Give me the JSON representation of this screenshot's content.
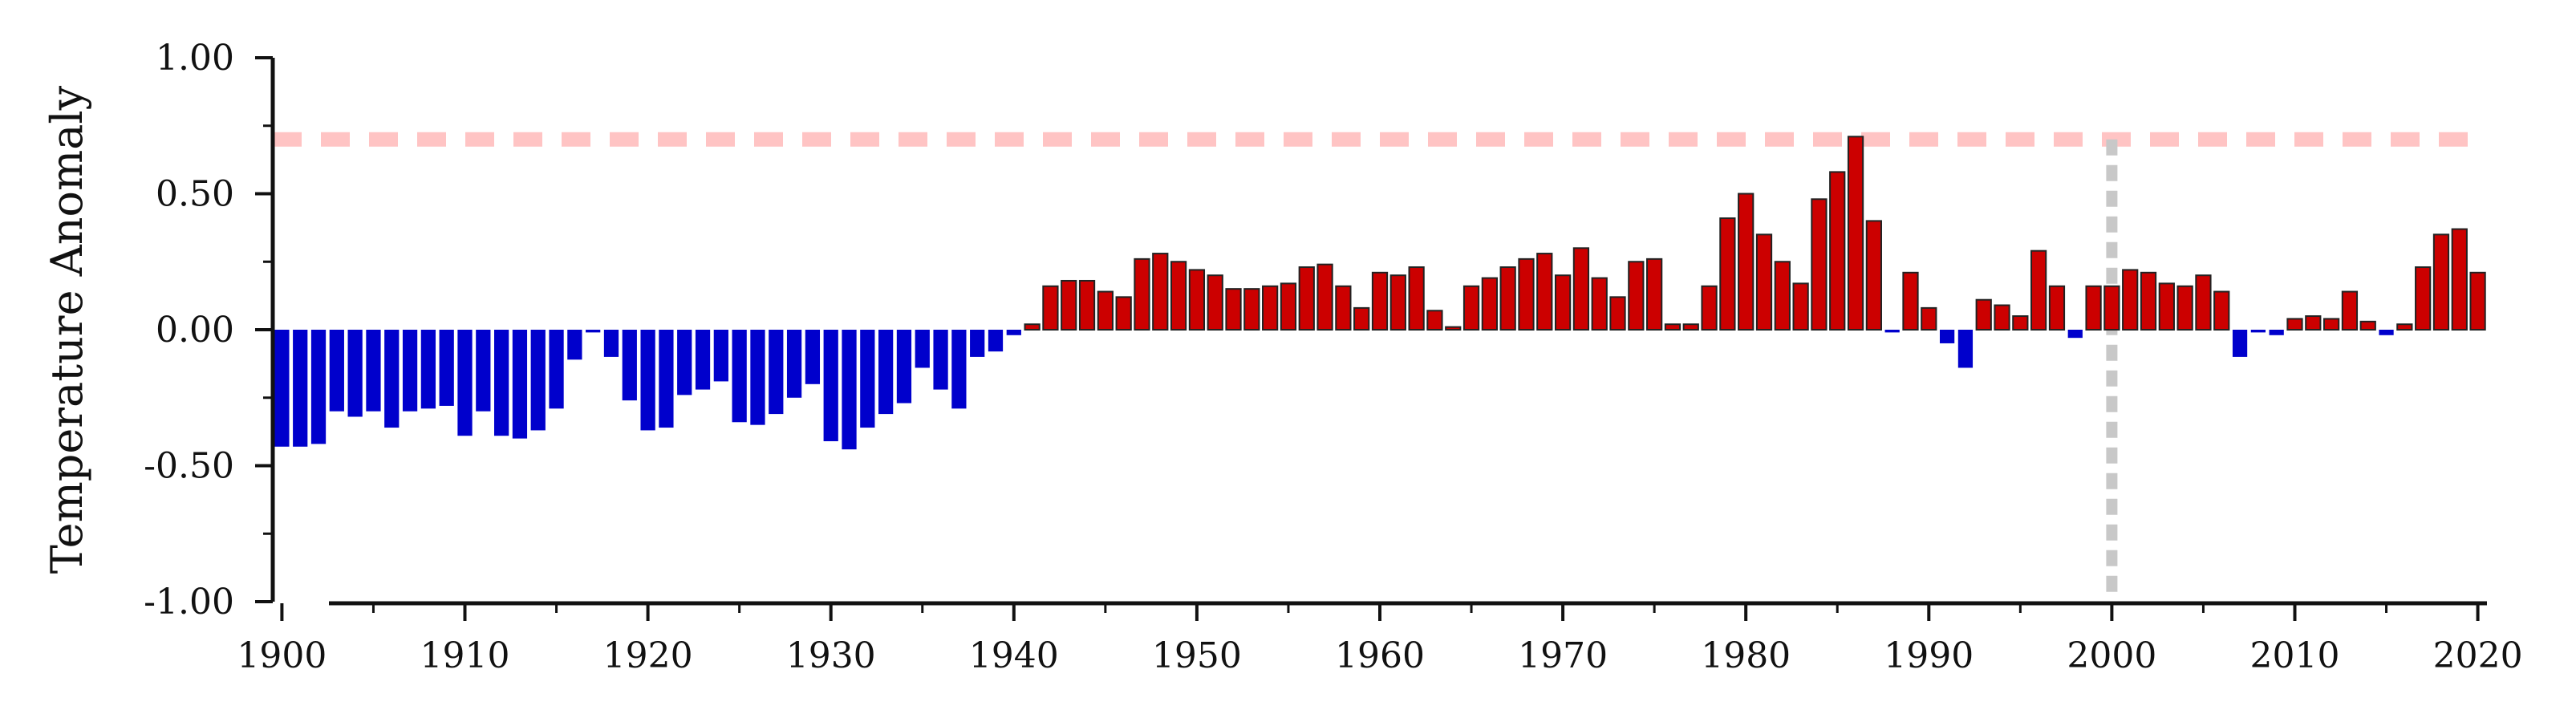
{
  "chart_data": {
    "type": "bar",
    "title": "",
    "xlabel": "",
    "ylabel": "Temperature Anomaly",
    "xlim": [
      1899.5,
      2020.5
    ],
    "ylim": [
      -1.0,
      1.0
    ],
    "x_ticks": [
      1900,
      1910,
      1920,
      1930,
      1940,
      1950,
      1960,
      1970,
      1980,
      1990,
      2000,
      2010,
      2020
    ],
    "y_ticks": [
      "1.00",
      "0.50",
      "0.00",
      "-0.50",
      "-1.00"
    ],
    "y_tick_values": [
      1.0,
      0.5,
      0.0,
      -0.5,
      -1.0
    ],
    "reference_line_y": 0.7,
    "reference_line_x": 2000,
    "grid": false,
    "colors": {
      "positive": "#cc0000",
      "negative": "#0000cc",
      "reference_horizontal": "#ffc4c4",
      "reference_vertical": "#c8c8c8",
      "axis": "#111111"
    },
    "x": [
      1900,
      1901,
      1902,
      1903,
      1904,
      1905,
      1906,
      1907,
      1908,
      1909,
      1910,
      1911,
      1912,
      1913,
      1914,
      1915,
      1916,
      1917,
      1918,
      1919,
      1920,
      1921,
      1922,
      1923,
      1924,
      1925,
      1926,
      1927,
      1928,
      1929,
      1930,
      1931,
      1932,
      1933,
      1934,
      1935,
      1936,
      1937,
      1938,
      1939,
      1940,
      1941,
      1942,
      1943,
      1944,
      1945,
      1946,
      1947,
      1948,
      1949,
      1950,
      1951,
      1952,
      1953,
      1954,
      1955,
      1956,
      1957,
      1958,
      1959,
      1960,
      1961,
      1962,
      1963,
      1964,
      1965,
      1966,
      1967,
      1968,
      1969,
      1970,
      1971,
      1972,
      1973,
      1974,
      1975,
      1976,
      1977,
      1978,
      1979,
      1980,
      1981,
      1982,
      1983,
      1984,
      1985,
      1986,
      1987,
      1988,
      1989,
      1990,
      1991,
      1992,
      1993,
      1994,
      1995,
      1996,
      1997,
      1998,
      1999,
      2000,
      2001,
      2002,
      2003,
      2004,
      2005,
      2006,
      2007,
      2008,
      2009,
      2010,
      2011,
      2012,
      2013,
      2014,
      2015,
      2016,
      2017,
      2018,
      2019,
      2020
    ],
    "values": [
      -0.43,
      -0.43,
      -0.42,
      -0.3,
      -0.32,
      -0.3,
      -0.36,
      -0.3,
      -0.29,
      -0.28,
      -0.39,
      -0.3,
      -0.39,
      -0.4,
      -0.37,
      -0.29,
      -0.11,
      -0.01,
      -0.1,
      -0.26,
      -0.37,
      -0.36,
      -0.24,
      -0.22,
      -0.19,
      -0.34,
      -0.35,
      -0.31,
      -0.25,
      -0.2,
      -0.41,
      -0.44,
      -0.36,
      -0.31,
      -0.27,
      -0.14,
      -0.22,
      -0.29,
      -0.1,
      -0.08,
      -0.02,
      0.02,
      0.16,
      0.18,
      0.18,
      0.14,
      0.12,
      0.26,
      0.28,
      0.25,
      0.22,
      0.2,
      0.15,
      0.15,
      0.16,
      0.17,
      0.23,
      0.24,
      0.16,
      0.08,
      0.21,
      0.2,
      0.23,
      0.07,
      0.01,
      0.16,
      0.19,
      0.23,
      0.26,
      0.28,
      0.2,
      0.3,
      0.19,
      0.12,
      0.25,
      0.26,
      0.02,
      0.02,
      0.16,
      0.41,
      0.5,
      0.35,
      0.25,
      0.17,
      0.48,
      0.58,
      0.71,
      0.4,
      -0.01,
      0.21,
      0.08,
      -0.05,
      -0.14,
      0.11,
      0.09,
      0.05,
      0.29,
      0.16,
      -0.03,
      0.16,
      0.16,
      0.22,
      0.21,
      0.17,
      0.16,
      0.2,
      0.14,
      -0.1,
      -0.01,
      -0.02,
      0.04,
      0.05,
      0.04,
      0.14,
      0.03,
      -0.02,
      0.02,
      0.23,
      0.35,
      0.37,
      0.21
    ]
  }
}
